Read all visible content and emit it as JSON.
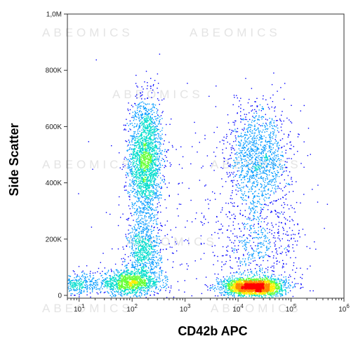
{
  "chart_data": {
    "type": "scatter",
    "style": "flow-cytometry density dot plot",
    "xlabel": "CD42b APC",
    "ylabel": "Side Scatter",
    "x_scale": "log",
    "xlim": [
      6,
      1000000
    ],
    "ylim": [
      -10000,
      1000000
    ],
    "y_ticks": [
      {
        "value": 0,
        "label": "0"
      },
      {
        "value": 200000,
        "label": "200K"
      },
      {
        "value": 400000,
        "label": "400K"
      },
      {
        "value": 600000,
        "label": "600K"
      },
      {
        "value": 800000,
        "label": "800K"
      },
      {
        "value": 1000000,
        "label": "1,0M"
      }
    ],
    "x_ticks": [
      {
        "value": 10,
        "base": "10",
        "exp": "1"
      },
      {
        "value": 100,
        "base": "10",
        "exp": "2"
      },
      {
        "value": 1000,
        "base": "10",
        "exp": "3"
      },
      {
        "value": 10000,
        "base": "10",
        "exp": "4"
      },
      {
        "value": 100000,
        "base": "10",
        "exp": "5"
      },
      {
        "value": 1000000,
        "base": "10",
        "exp": "6"
      }
    ],
    "populations": [
      {
        "x_center": 180,
        "y_center": 480000,
        "x_spread_log": 0.16,
        "y_spread": 110000,
        "relative_density": 0.24
      },
      {
        "x_center": 90,
        "y_center": 45000,
        "x_spread_log": 0.3,
        "y_spread": 22000,
        "relative_density": 0.13
      },
      {
        "x_center": 170,
        "y_center": 150000,
        "x_spread_log": 0.16,
        "y_spread": 60000,
        "relative_density": 0.08
      },
      {
        "x_center": 20000,
        "y_center": 30000,
        "x_spread_log": 0.28,
        "y_spread": 16000,
        "relative_density": 0.28
      },
      {
        "x_center": 25000,
        "y_center": 490000,
        "x_spread_log": 0.3,
        "y_spread": 95000,
        "relative_density": 0.14
      },
      {
        "x_center": 25000,
        "y_center": 170000,
        "x_spread_log": 0.4,
        "y_spread": 90000,
        "relative_density": 0.06
      },
      {
        "x_center": 3000,
        "y_center": 200000,
        "x_spread_log": 1.0,
        "y_spread": 200000,
        "relative_density": 0.04
      },
      {
        "x_center": 10,
        "y_center": 40000,
        "x_spread_log": 0.18,
        "y_spread": 20000,
        "relative_density": 0.03
      }
    ],
    "colormap": [
      "#0000ff",
      "#0099ff",
      "#00ddcc",
      "#66ff33",
      "#ffee00",
      "#ff8800",
      "#ff0000"
    ],
    "grid": false,
    "legend": "none"
  },
  "watermark": "ABEOMICS"
}
